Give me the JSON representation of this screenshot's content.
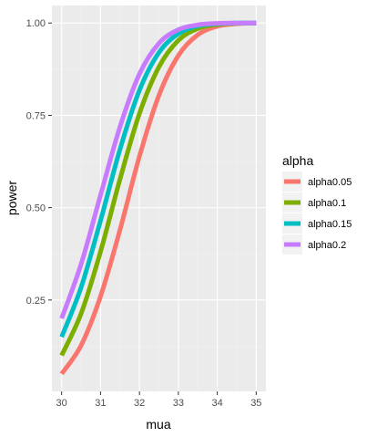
{
  "chart_data": {
    "type": "line",
    "xlabel": "mua",
    "ylabel": "power",
    "xlim": [
      30,
      35
    ],
    "ylim": [
      0.0,
      1.0
    ],
    "xticks": [
      30,
      31,
      32,
      33,
      34,
      35
    ],
    "yticks": [
      0.25,
      0.5,
      0.75,
      1.0
    ],
    "ytick_labels": [
      "0.25",
      "0.50",
      "0.75",
      "1.00"
    ],
    "xtick_labels": [
      "30",
      "31",
      "32",
      "33",
      "34",
      "35"
    ],
    "grid": true,
    "legend": {
      "title": "alpha",
      "position": "right"
    },
    "x": [
      30.0,
      30.5,
      31.0,
      31.5,
      32.0,
      32.5,
      33.0,
      33.5,
      34.0,
      34.5,
      35.0
    ],
    "series": [
      {
        "name": "alpha0.05",
        "color": "#F8766D",
        "values": [
          0.05,
          0.127,
          0.26,
          0.44,
          0.639,
          0.804,
          0.912,
          0.968,
          0.991,
          0.998,
          1.0
        ]
      },
      {
        "name": "alpha0.1",
        "color": "#7CAE00",
        "values": [
          0.1,
          0.213,
          0.381,
          0.577,
          0.755,
          0.881,
          0.953,
          0.985,
          0.996,
          0.999,
          1.0
        ]
      },
      {
        "name": "alpha0.15",
        "color": "#00BFC4",
        "values": [
          0.15,
          0.284,
          0.465,
          0.658,
          0.818,
          0.92,
          0.971,
          0.992,
          0.998,
          1.0,
          1.0
        ]
      },
      {
        "name": "alpha0.2",
        "color": "#C77CFF",
        "values": [
          0.2,
          0.347,
          0.534,
          0.719,
          0.862,
          0.945,
          0.982,
          0.995,
          0.999,
          1.0,
          1.0
        ]
      }
    ],
    "colors": {
      "panel": "#EBEBEB",
      "grid_major": "#FFFFFF",
      "grid_minor": "#F2F2F2"
    }
  }
}
